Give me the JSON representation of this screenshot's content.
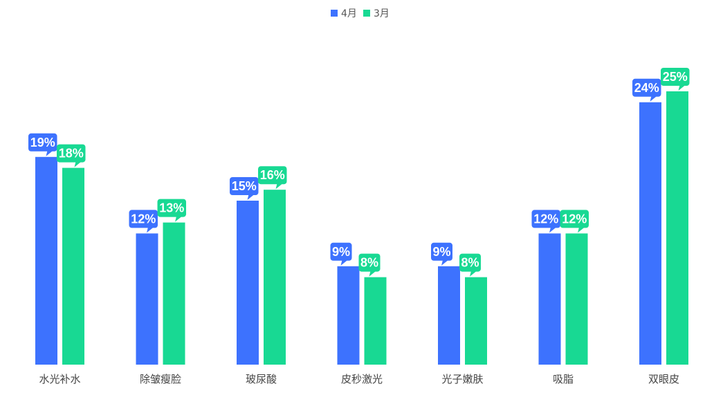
{
  "chart_data": {
    "type": "bar",
    "categories": [
      "水光补水",
      "除皱瘦脸",
      "玻尿酸",
      "皮秒激光",
      "光子嫩肤",
      "吸脂",
      "双眼皮"
    ],
    "series": [
      {
        "name": "4月",
        "color": "#3d72fe",
        "values": [
          19,
          12,
          15,
          9,
          9,
          12,
          24
        ],
        "labels": [
          "19%",
          "12%",
          "15%",
          "9%",
          "9%",
          "12%",
          "24%"
        ]
      },
      {
        "name": "3月",
        "color": "#18d993",
        "values": [
          18,
          13,
          16,
          8,
          8,
          12,
          25
        ],
        "labels": [
          "18%",
          "13%",
          "16%",
          "8%",
          "8%",
          "12%",
          "25%"
        ]
      }
    ],
    "ylim": [
      0,
      25
    ],
    "grid": false,
    "legend": "top-center",
    "title": "",
    "xlabel": "",
    "ylabel": ""
  }
}
